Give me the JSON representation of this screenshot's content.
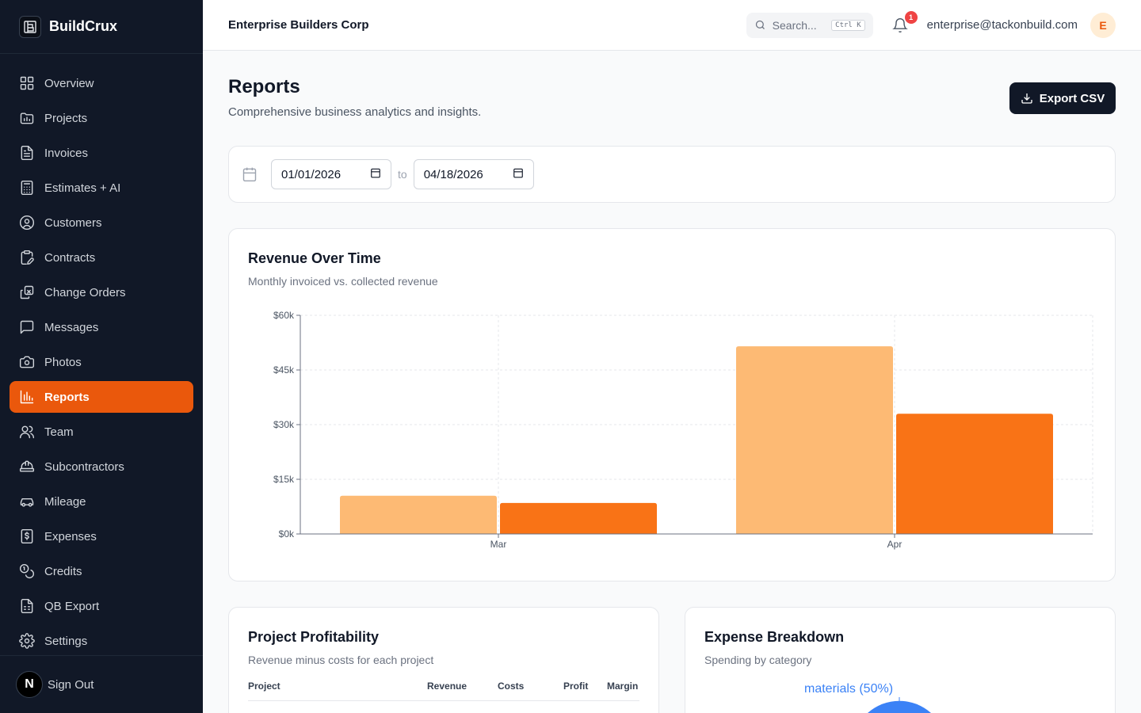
{
  "app": {
    "name": "BuildCrux"
  },
  "sidebar": {
    "items": [
      {
        "label": "Overview",
        "icon": "layout-grid-icon"
      },
      {
        "label": "Projects",
        "icon": "folder-icon"
      },
      {
        "label": "Invoices",
        "icon": "file-text-icon"
      },
      {
        "label": "Estimates + AI",
        "icon": "calculator-icon"
      },
      {
        "label": "Customers",
        "icon": "user-circle-icon"
      },
      {
        "label": "Contracts",
        "icon": "clipboard-pen-icon"
      },
      {
        "label": "Change Orders",
        "icon": "copy-icon"
      },
      {
        "label": "Messages",
        "icon": "message-square-icon"
      },
      {
        "label": "Photos",
        "icon": "camera-icon"
      },
      {
        "label": "Reports",
        "icon": "bar-chart-icon",
        "active": true
      },
      {
        "label": "Team",
        "icon": "users-icon"
      },
      {
        "label": "Subcontractors",
        "icon": "hard-hat-icon"
      },
      {
        "label": "Mileage",
        "icon": "car-icon"
      },
      {
        "label": "Expenses",
        "icon": "receipt-icon"
      },
      {
        "label": "Credits",
        "icon": "coins-icon"
      },
      {
        "label": "QB Export",
        "icon": "file-spreadsheet-icon"
      },
      {
        "label": "Settings",
        "icon": "gear-icon"
      }
    ],
    "footer": {
      "badge": "N",
      "signout_label": "Sign Out"
    }
  },
  "header": {
    "company": "Enterprise Builders Corp",
    "search_placeholder": "Search...",
    "search_shortcut": "Ctrl K",
    "notification_count": "1",
    "email": "enterprise@tackonbuild.com",
    "avatar_initial": "E"
  },
  "page": {
    "title": "Reports",
    "subtitle": "Comprehensive business analytics and insights.",
    "export_label": "Export CSV"
  },
  "filters": {
    "start_date": "01/01/2026",
    "to_label": "to",
    "end_date": "04/18/2026"
  },
  "revenue_card": {
    "title": "Revenue Over Time",
    "subtitle": "Monthly invoiced vs. collected revenue"
  },
  "chart_data": {
    "type": "bar",
    "categories": [
      "Mar",
      "Apr"
    ],
    "series": [
      {
        "values": [
          10500,
          51500
        ],
        "color": "#fdba74"
      },
      {
        "values": [
          8500,
          33000
        ],
        "color": "#f97316"
      }
    ],
    "ylim": [
      0,
      60000
    ],
    "yticks": [
      0,
      15000,
      30000,
      45000,
      60000
    ],
    "ytick_labels": [
      "$0k",
      "$15k",
      "$30k",
      "$45k",
      "$60k"
    ],
    "grid": true,
    "legend": "none"
  },
  "profit_card": {
    "title": "Project Profitability",
    "subtitle": "Revenue minus costs for each project",
    "columns": [
      "Project",
      "Revenue",
      "Costs",
      "Profit",
      "Margin"
    ]
  },
  "expense_card": {
    "title": "Expense Breakdown",
    "subtitle": "Spending by category",
    "pie_label": "materials (50%)"
  }
}
